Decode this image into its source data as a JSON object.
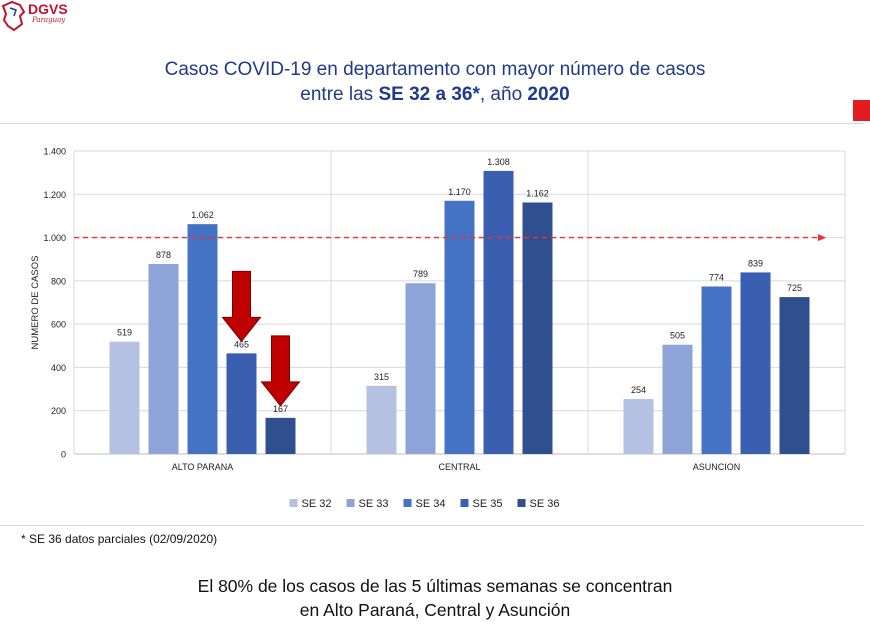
{
  "logo": {
    "text": "DGVS",
    "sub": "Paraguay"
  },
  "title": {
    "line1": "Casos COVID-19 en departamento con mayor número de casos",
    "line2_pre": "entre las ",
    "line2_bold1": "SE 32 a 36*",
    "line2_mid": ", año ",
    "line2_bold2": "2020"
  },
  "footnote": "* SE 36 datos parciales (02/09/2020)",
  "conclusion": {
    "line1": "El 80% de los casos de las 5 últimas semanas se concentran",
    "line2": "en Alto Paraná, Central y Asunción"
  },
  "colors": {
    "title": "#1f3a8a",
    "brand_red": "#e11c23",
    "threshold": "#ff2a2a",
    "arrow": "#c00000",
    "series": [
      "#b4c1e2",
      "#8ea4d8",
      "#4472c4",
      "#3b5fb0",
      "#2f4f8f"
    ]
  },
  "chart_data": {
    "type": "bar",
    "categories": [
      "ALTO PARANA",
      "CENTRAL",
      "ASUNCION"
    ],
    "series": [
      {
        "name": "SE 32",
        "values": [
          519,
          315,
          254
        ]
      },
      {
        "name": "SE 33",
        "values": [
          878,
          789,
          505
        ]
      },
      {
        "name": "SE 34",
        "values": [
          1062,
          1170,
          774
        ]
      },
      {
        "name": "SE 35",
        "values": [
          465,
          1308,
          839
        ]
      },
      {
        "name": "SE 36",
        "values": [
          167,
          1162,
          725
        ]
      }
    ],
    "value_labels": [
      [
        "519",
        "878",
        "1.062",
        "465",
        "167"
      ],
      [
        "315",
        "789",
        "1.170",
        "1.308",
        "1.162"
      ],
      [
        "254",
        "505",
        "774",
        "839",
        "725"
      ]
    ],
    "ylabel": "NUMERO DE CASOS",
    "xlabel": "",
    "ylim": [
      0,
      1400
    ],
    "yticks": [
      0,
      200,
      400,
      600,
      800,
      1000,
      1200,
      1400
    ],
    "ytick_labels": [
      "0",
      "200",
      "400",
      "600",
      "800",
      "1.000",
      "1.200",
      "1.400"
    ],
    "threshold": 1000,
    "decreasing_arrows": [
      {
        "category": "ALTO PARANA",
        "series": "SE 35"
      },
      {
        "category": "ALTO PARANA",
        "series": "SE 36"
      }
    ],
    "grid": true,
    "legend_position": "bottom"
  }
}
